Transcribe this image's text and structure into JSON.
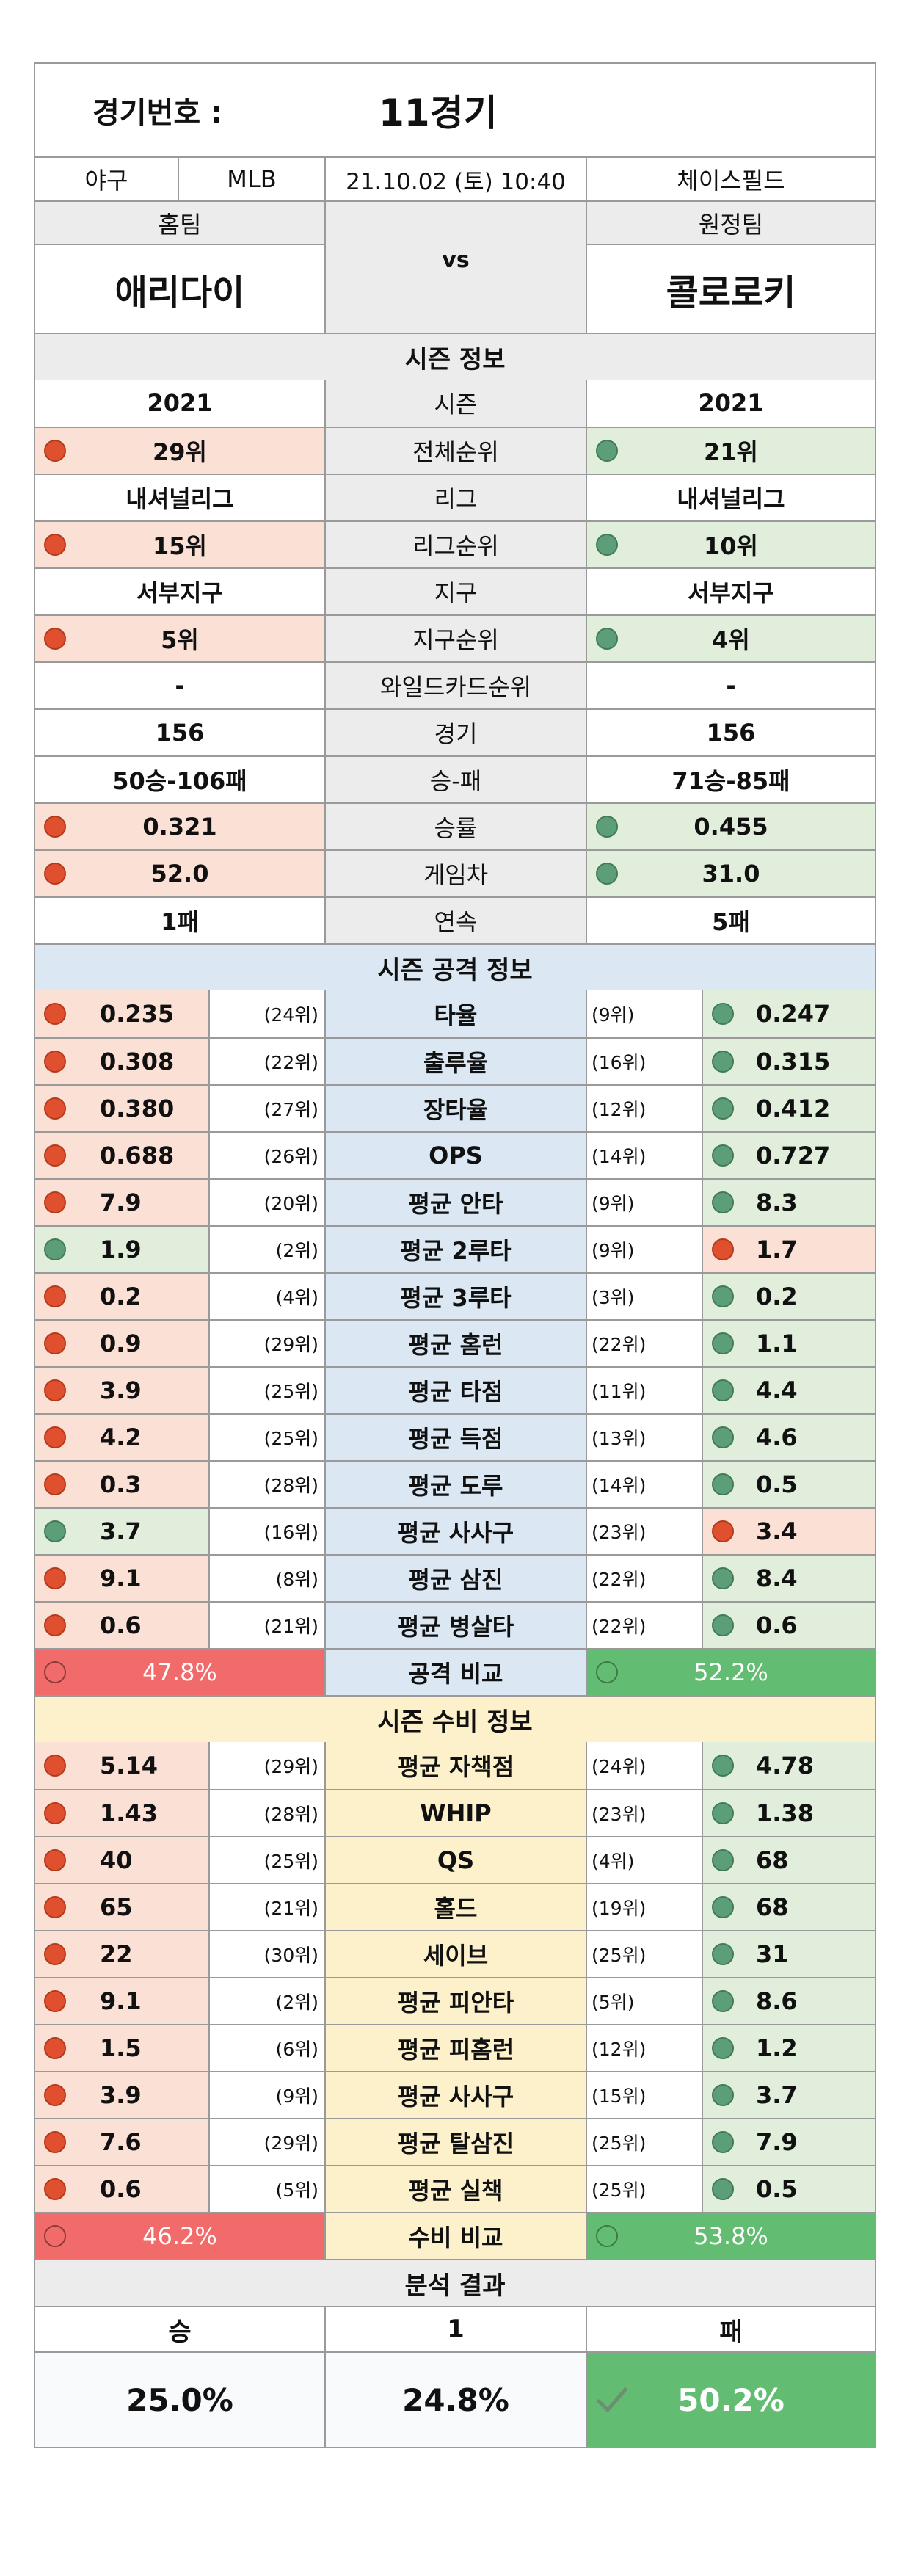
{
  "header": {
    "match_label": "경기번호 :",
    "match_value": "11경기",
    "sport": "야구",
    "league": "MLB",
    "datetime": "21.10.02 (토) 10:40",
    "stadium": "체이스필드"
  },
  "teams": {
    "home_label": "홈팀",
    "away_label": "원정팀",
    "home_name": "애리다이",
    "vs": "vs",
    "away_name": "콜로로키"
  },
  "season": {
    "title": "시즌 정보",
    "rows": [
      {
        "label": "시즌",
        "home": "2021",
        "away": "2021",
        "dots": false
      },
      {
        "label": "전체순위",
        "home": "29위",
        "away": "21위",
        "dots": true
      },
      {
        "label": "리그",
        "home": "내셔널리그",
        "away": "내셔널리그",
        "dots": false
      },
      {
        "label": "리그순위",
        "home": "15위",
        "away": "10위",
        "dots": true
      },
      {
        "label": "지구",
        "home": "서부지구",
        "away": "서부지구",
        "dots": false
      },
      {
        "label": "지구순위",
        "home": "5위",
        "away": "4위",
        "dots": true
      },
      {
        "label": "와일드카드순위",
        "home": "-",
        "away": "-",
        "dots": false
      },
      {
        "label": "경기",
        "home": "156",
        "away": "156",
        "dots": false
      },
      {
        "label": "승-패",
        "home": "50승-106패",
        "away": "71승-85패",
        "dots": false
      },
      {
        "label": "승률",
        "home": "0.321",
        "away": "0.455",
        "dots": true
      },
      {
        "label": "게임차",
        "home": "52.0",
        "away": "31.0",
        "dots": true
      },
      {
        "label": "연속",
        "home": "1패",
        "away": "5패",
        "dots": false
      }
    ]
  },
  "offense": {
    "title": "시즌 공격 정보",
    "rows": [
      {
        "label": "타율",
        "home": "0.235",
        "home_rank": "(24위)",
        "away": "0.247",
        "away_rank": "(9위)",
        "winner": "away"
      },
      {
        "label": "출루율",
        "home": "0.308",
        "home_rank": "(22위)",
        "away": "0.315",
        "away_rank": "(16위)",
        "winner": "away"
      },
      {
        "label": "장타율",
        "home": "0.380",
        "home_rank": "(27위)",
        "away": "0.412",
        "away_rank": "(12위)",
        "winner": "away"
      },
      {
        "label": "OPS",
        "home": "0.688",
        "home_rank": "(26위)",
        "away": "0.727",
        "away_rank": "(14위)",
        "winner": "away"
      },
      {
        "label": "평균 안타",
        "home": "7.9",
        "home_rank": "(20위)",
        "away": "8.3",
        "away_rank": "(9위)",
        "winner": "away"
      },
      {
        "label": "평균 2루타",
        "home": "1.9",
        "home_rank": "(2위)",
        "away": "1.7",
        "away_rank": "(9위)",
        "winner": "home"
      },
      {
        "label": "평균 3루타",
        "home": "0.2",
        "home_rank": "(4위)",
        "away": "0.2",
        "away_rank": "(3위)",
        "winner": "away"
      },
      {
        "label": "평균 홈런",
        "home": "0.9",
        "home_rank": "(29위)",
        "away": "1.1",
        "away_rank": "(22위)",
        "winner": "away"
      },
      {
        "label": "평균 타점",
        "home": "3.9",
        "home_rank": "(25위)",
        "away": "4.4",
        "away_rank": "(11위)",
        "winner": "away"
      },
      {
        "label": "평균 득점",
        "home": "4.2",
        "home_rank": "(25위)",
        "away": "4.6",
        "away_rank": "(13위)",
        "winner": "away"
      },
      {
        "label": "평균 도루",
        "home": "0.3",
        "home_rank": "(28위)",
        "away": "0.5",
        "away_rank": "(14위)",
        "winner": "away"
      },
      {
        "label": "평균 사사구",
        "home": "3.7",
        "home_rank": "(16위)",
        "away": "3.4",
        "away_rank": "(23위)",
        "winner": "home"
      },
      {
        "label": "평균 삼진",
        "home": "9.1",
        "home_rank": "(8위)",
        "away": "8.4",
        "away_rank": "(22위)",
        "winner": "away"
      },
      {
        "label": "평균 병살타",
        "home": "0.6",
        "home_rank": "(21위)",
        "away": "0.6",
        "away_rank": "(22위)",
        "winner": "away"
      }
    ],
    "compare_label": "공격 비교",
    "home_pct": "47.8%",
    "away_pct": "52.2%"
  },
  "defense": {
    "title": "시즌 수비 정보",
    "rows": [
      {
        "label": "평균 자책점",
        "home": "5.14",
        "home_rank": "(29위)",
        "away": "4.78",
        "away_rank": "(24위)",
        "winner": "away"
      },
      {
        "label": "WHIP",
        "home": "1.43",
        "home_rank": "(28위)",
        "away": "1.38",
        "away_rank": "(23위)",
        "winner": "away"
      },
      {
        "label": "QS",
        "home": "40",
        "home_rank": "(25위)",
        "away": "68",
        "away_rank": "(4위)",
        "winner": "away"
      },
      {
        "label": "홀드",
        "home": "65",
        "home_rank": "(21위)",
        "away": "68",
        "away_rank": "(19위)",
        "winner": "away"
      },
      {
        "label": "세이브",
        "home": "22",
        "home_rank": "(30위)",
        "away": "31",
        "away_rank": "(25위)",
        "winner": "away"
      },
      {
        "label": "평균 피안타",
        "home": "9.1",
        "home_rank": "(2위)",
        "away": "8.6",
        "away_rank": "(5위)",
        "winner": "away"
      },
      {
        "label": "평균 피홈런",
        "home": "1.5",
        "home_rank": "(6위)",
        "away": "1.2",
        "away_rank": "(12위)",
        "winner": "away"
      },
      {
        "label": "평균 사사구",
        "home": "3.9",
        "home_rank": "(9위)",
        "away": "3.7",
        "away_rank": "(15위)",
        "winner": "away"
      },
      {
        "label": "평균 탈삼진",
        "home": "7.6",
        "home_rank": "(29위)",
        "away": "7.9",
        "away_rank": "(25위)",
        "winner": "away"
      },
      {
        "label": "평균 실책",
        "home": "0.6",
        "home_rank": "(5위)",
        "away": "0.5",
        "away_rank": "(25위)",
        "winner": "away"
      }
    ],
    "compare_label": "수비 비교",
    "home_pct": "46.2%",
    "away_pct": "53.8%"
  },
  "result": {
    "title": "분석 결과",
    "win_label": "승",
    "draw_label": "1",
    "lose_label": "패",
    "win_pct": "25.0%",
    "draw_pct": "24.8%",
    "lose_pct": "50.2%",
    "check_icon": "check-icon",
    "colors": {
      "red": "#f26b6b",
      "green": "#62bc72",
      "red_dot": "#e0502e",
      "green_dot": "#5c9e78"
    }
  }
}
